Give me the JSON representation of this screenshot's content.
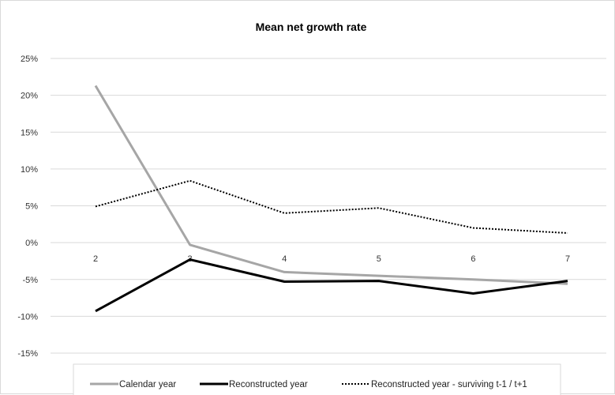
{
  "chart_data": {
    "type": "line",
    "title": "Mean net growth rate",
    "xlabel": "",
    "ylabel": "",
    "categories": [
      "2",
      "3",
      "4",
      "5",
      "6",
      "7"
    ],
    "ylim": [
      -0.15,
      0.25
    ],
    "yticks": [
      0.25,
      0.2,
      0.15,
      0.1,
      0.05,
      0.0,
      -0.05,
      -0.1,
      -0.15
    ],
    "ytick_labels": [
      "25%",
      "20%",
      "15%",
      "10%",
      "5%",
      "0%",
      "-5%",
      "-10%",
      "-15%"
    ],
    "grid": true,
    "legend_position": "bottom",
    "series": [
      {
        "name": "Calendar year",
        "values": [
          0.213,
          -0.003,
          -0.04,
          -0.045,
          -0.05,
          -0.056
        ],
        "color": "#a6a6a6",
        "style": "solid"
      },
      {
        "name": "Reconstructed year",
        "values": [
          -0.093,
          -0.023,
          -0.053,
          -0.052,
          -0.069,
          -0.052
        ],
        "color": "#000000",
        "style": "solid"
      },
      {
        "name": "Reconstructed year - surviving t-1 / t+1",
        "values": [
          0.049,
          0.084,
          0.04,
          0.047,
          0.02,
          0.013
        ],
        "color": "#000000",
        "style": "dotted"
      }
    ]
  }
}
